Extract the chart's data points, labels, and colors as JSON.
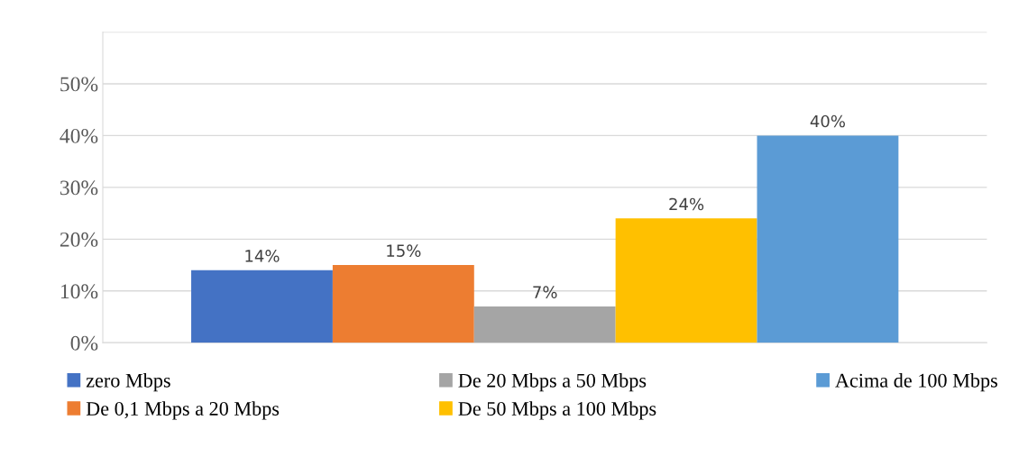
{
  "chart_data": {
    "type": "bar",
    "categories": [
      null
    ],
    "series": [
      {
        "name": "zero Mbps",
        "color": "#4472c4",
        "values": [
          14
        ],
        "value_labels": [
          "14%"
        ]
      },
      {
        "name": "De 0,1 Mbps a 20 Mbps",
        "color": "#ed7d31",
        "values": [
          15
        ],
        "value_labels": [
          "15%"
        ]
      },
      {
        "name": "De 20 Mbps a 50 Mbps",
        "color": "#a5a5a5",
        "values": [
          7
        ],
        "value_labels": [
          "7%"
        ]
      },
      {
        "name": "De 50 Mbps a 100 Mbps",
        "color": "#ffc000",
        "values": [
          24
        ],
        "value_labels": [
          "24%"
        ]
      },
      {
        "name": "Acima de 100 Mbps",
        "color": "#5b9bd5",
        "values": [
          40
        ],
        "value_labels": [
          "40%"
        ]
      }
    ],
    "ylim": [
      0,
      60
    ],
    "yticks": [
      {
        "value": 0,
        "label": "0%"
      },
      {
        "value": 10,
        "label": "10%"
      },
      {
        "value": 20,
        "label": "20%"
      },
      {
        "value": 30,
        "label": "30%"
      },
      {
        "value": 40,
        "label": "40%"
      },
      {
        "value": 50,
        "label": "50%"
      },
      {
        "value": 60,
        "label": null
      }
    ],
    "grid": "y",
    "legend": "bottom"
  }
}
